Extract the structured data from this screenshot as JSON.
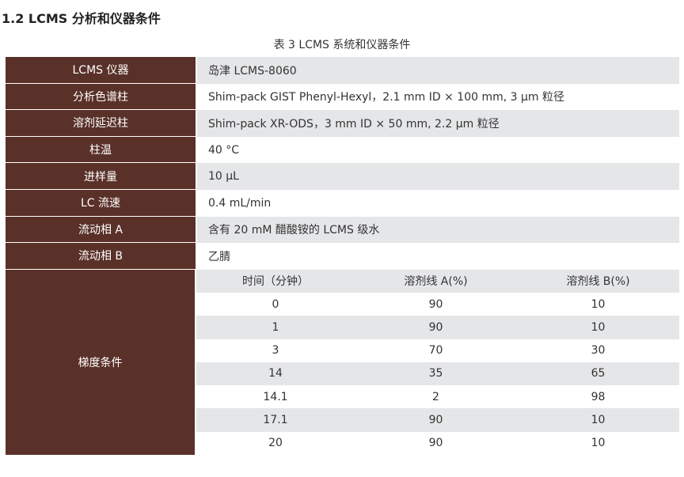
{
  "heading": "1.2  LCMS 分析和仪器条件",
  "caption": "表 3 LCMS 系统和仪器条件",
  "rows": [
    {
      "label": "LCMS 仪器",
      "value": "岛津 LCMS-8060"
    },
    {
      "label": "分析色谱柱",
      "value": "Shim-pack GIST Phenyl-Hexyl，2.1 mm ID × 100 mm, 3 μm 粒径"
    },
    {
      "label": "溶剂延迟柱",
      "value": "Shim-pack XR-ODS，3 mm ID × 50 mm, 2.2 μm 粒径"
    },
    {
      "label": "柱温",
      "value": "40 °C"
    },
    {
      "label": "进样量",
      "value": "10 μL"
    },
    {
      "label": "LC 流速",
      "value": "0.4 mL/min"
    },
    {
      "label": "流动相 A",
      "value": "含有 20 mM 醋酸铵的 LCMS 级水"
    },
    {
      "label": "流动相 B",
      "value": "乙腈"
    }
  ],
  "gradient": {
    "label": "梯度条件",
    "headers": [
      "时间（分钟）",
      "溶剂线 A(%)",
      "溶剂线 B(%)"
    ],
    "rows": [
      [
        "0",
        "90",
        "10"
      ],
      [
        "1",
        "90",
        "10"
      ],
      [
        "3",
        "70",
        "30"
      ],
      [
        "14",
        "35",
        "65"
      ],
      [
        "14.1",
        "2",
        "98"
      ],
      [
        "17.1",
        "90",
        "10"
      ],
      [
        "20",
        "90",
        "10"
      ]
    ]
  },
  "colors": {
    "label_bg": "#5a3129",
    "stripe": "#e5e6e8"
  }
}
